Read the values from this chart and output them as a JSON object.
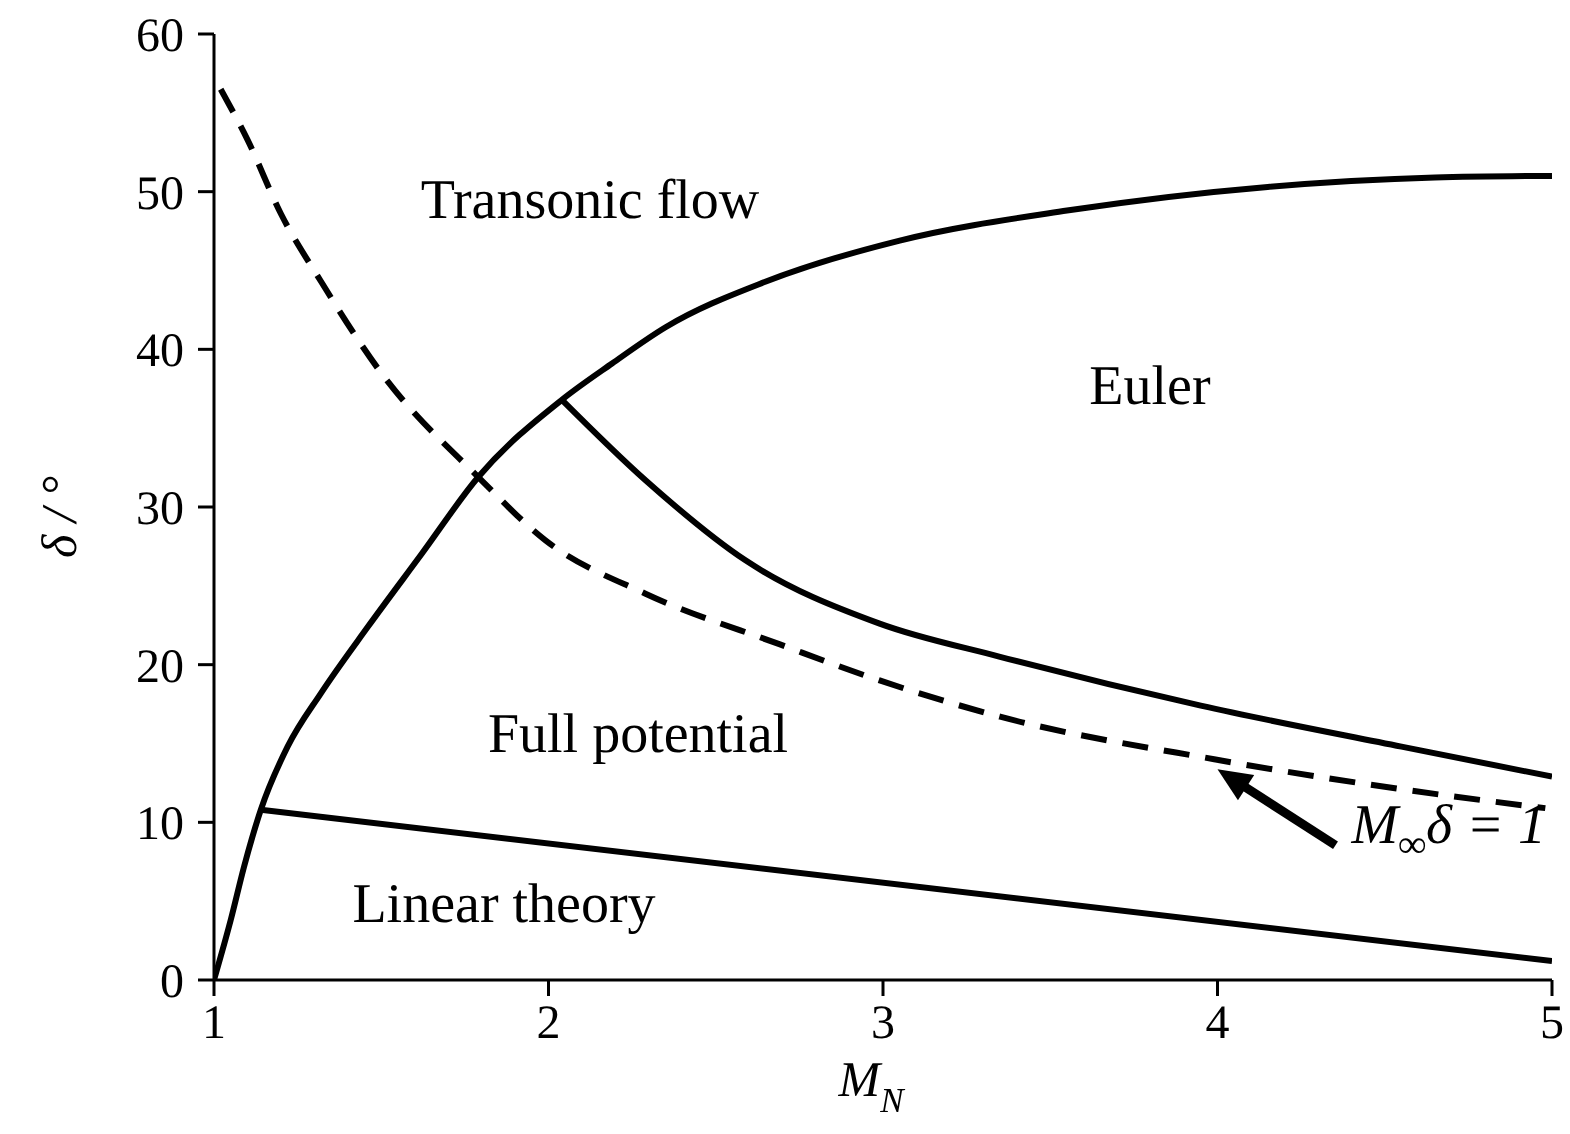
{
  "chart_data": {
    "type": "line",
    "xlabel": "M$_{N}$",
    "ylabel": "δ / °",
    "xlim": [
      1,
      5
    ],
    "xticks": [
      1,
      2,
      3,
      4,
      5
    ],
    "ylim": [
      0,
      60
    ],
    "yticks": [
      0,
      10,
      20,
      30,
      40,
      50,
      60
    ],
    "series": [
      {
        "color": "#000000",
        "x": [
          1,
          1.05,
          1.09,
          1.14,
          1.22,
          1.32,
          1.46,
          1.62,
          1.79,
          2.04,
          2.19,
          2.35,
          2.65,
          3.05,
          3.55,
          4.15,
          4.65,
          5
        ],
        "values": [
          0,
          3.8,
          7.2,
          10.8,
          14.8,
          18.2,
          22.4,
          27,
          31.9,
          36.8,
          39.1,
          41.4,
          44.3,
          46.9,
          48.8,
          50.3,
          50.9,
          51
        ]
      },
      {
        "color": "#000000",
        "line_style": "dashed",
        "x": [
          1.02,
          1.1,
          1.2,
          1.32,
          1.5,
          1.79,
          1.99,
          2.29,
          2.69,
          2.99,
          3.35,
          3.99,
          4.55,
          4.98
        ],
        "values": [
          56.5,
          53.3,
          48.6,
          44.3,
          38.5,
          31.9,
          27.9,
          24.5,
          21.3,
          19,
          16.7,
          14,
          12.1,
          10.9
        ]
      },
      {
        "color": "#000000",
        "x": [
          2.04,
          2.29,
          2.59,
          2.99,
          3.35,
          3.95,
          4.55,
          5
        ],
        "values": [
          36.8,
          31.7,
          26.6,
          22.6,
          20.5,
          17.4,
          14.8,
          12.9
        ]
      },
      {
        "color": "#000000",
        "x": [
          1.14,
          5
        ],
        "values": [
          10.8,
          1.2
        ]
      }
    ],
    "annotations": [
      "Transonic flow",
      "Euler",
      "Full potential",
      "Linear theory",
      {
        "text": "M$_{∞}$δ = 1",
        "x": 4,
        "y": 14
      }
    ]
  }
}
